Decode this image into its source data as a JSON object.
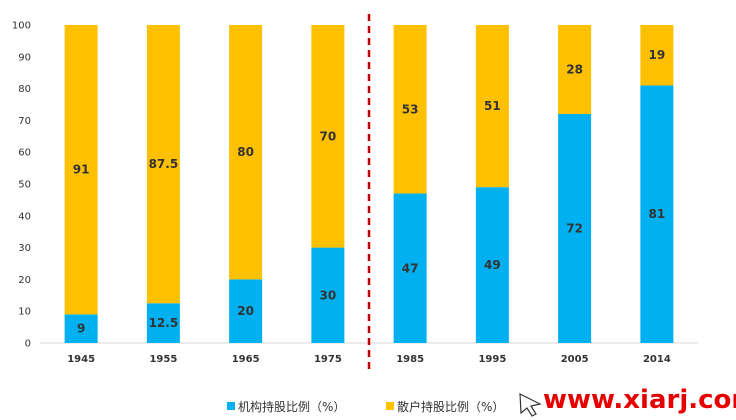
{
  "chart_data": {
    "type": "bar",
    "stacked": true,
    "categories": [
      "1945",
      "1955",
      "1965",
      "1975",
      "1985",
      "1995",
      "2005",
      "2014"
    ],
    "series": [
      {
        "name": "机构持股比例（%）",
        "color": "#00b0f0",
        "values": [
          9,
          12.5,
          20,
          30,
          47,
          49,
          72,
          81
        ],
        "labels": [
          "9",
          "12.5",
          "20",
          "30",
          "47",
          "49",
          "72",
          "81"
        ]
      },
      {
        "name": "散户持股比例（%）",
        "color": "#ffc000",
        "values": [
          91,
          87.5,
          80,
          70,
          53,
          51,
          28,
          19
        ],
        "labels": [
          "91",
          "87.5",
          "80",
          "70",
          "53",
          "51",
          "28",
          "19"
        ]
      }
    ],
    "yticks": [
      "0",
      "10",
      "20",
      "30",
      "40",
      "50",
      "60",
      "70",
      "80",
      "90",
      "100"
    ],
    "ylim": [
      0,
      100
    ],
    "grid": false,
    "legend_position": "bottom",
    "divider": {
      "after_category": "1975",
      "color": "#c00000",
      "style": "dashed"
    }
  },
  "watermark": {
    "text": "www.xiarj.com",
    "color": "#e60000",
    "icon": "arrow-pointer-icon"
  }
}
